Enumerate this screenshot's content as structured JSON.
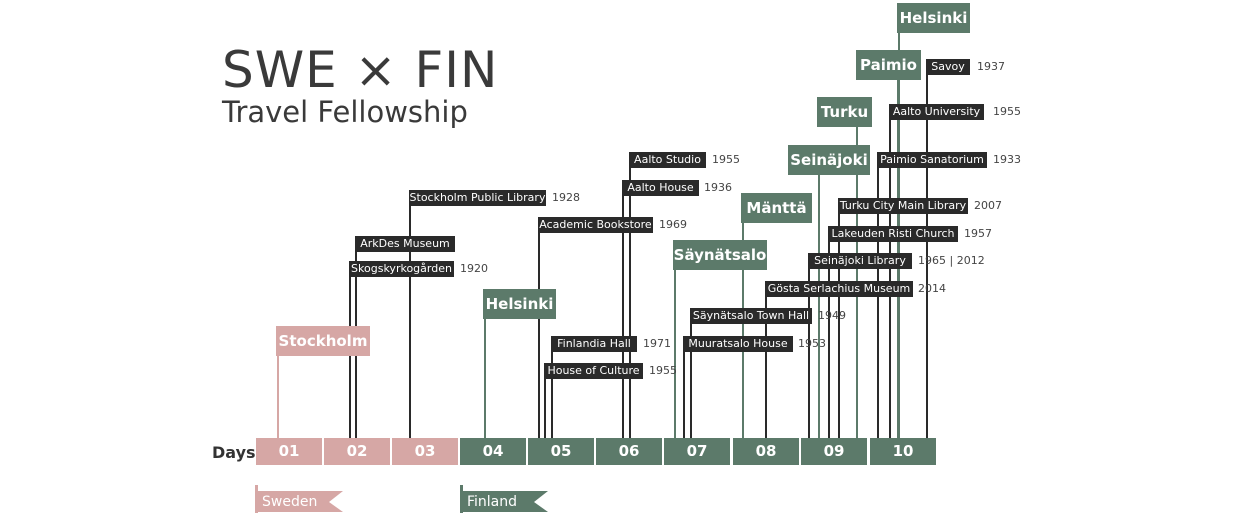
{
  "title": {
    "main": "SWE × FIN",
    "sub": "Travel Fellowship"
  },
  "colors": {
    "sweden": "#d6a7a5",
    "finland": "#5c7a6a",
    "label_bg": "#2a2a2a",
    "text": "#3a3a3a"
  },
  "days": {
    "label": "Days",
    "items": [
      {
        "num": "01",
        "country": "sweden"
      },
      {
        "num": "02",
        "country": "sweden"
      },
      {
        "num": "03",
        "country": "sweden"
      },
      {
        "num": "04",
        "country": "finland"
      },
      {
        "num": "05",
        "country": "finland"
      },
      {
        "num": "06",
        "country": "finland"
      },
      {
        "num": "07",
        "country": "finland"
      },
      {
        "num": "08",
        "country": "finland"
      },
      {
        "num": "09",
        "country": "finland"
      },
      {
        "num": "10",
        "country": "finland"
      }
    ]
  },
  "countries": [
    {
      "name": "Sweden",
      "color": "#d6a7a5"
    },
    {
      "name": "Finland",
      "color": "#5c7a6a"
    }
  ],
  "cities": [
    {
      "name": "Stockholm",
      "day": "01"
    },
    {
      "name": "Helsinki",
      "day": "04"
    },
    {
      "name": "Säynätsalo",
      "day": "07"
    },
    {
      "name": "Mänttä",
      "day": "08"
    },
    {
      "name": "Seinäjoki",
      "day": "09"
    },
    {
      "name": "Turku",
      "day": "09"
    },
    {
      "name": "Paimio",
      "day": "10"
    },
    {
      "name": "Helsinki",
      "day": "10"
    }
  ],
  "places": [
    {
      "name": "Skogskyrkogården",
      "year": "1920"
    },
    {
      "name": "ArkDes Museum",
      "year": ""
    },
    {
      "name": "Stockholm Public Library",
      "year": "1928"
    },
    {
      "name": "House of Culture",
      "year": "1955"
    },
    {
      "name": "Finlandia Hall",
      "year": "1971"
    },
    {
      "name": "Academic Bookstore",
      "year": "1969"
    },
    {
      "name": "Aalto House",
      "year": "1936"
    },
    {
      "name": "Aalto Studio",
      "year": "1955"
    },
    {
      "name": "Muuratsalo House",
      "year": "1953"
    },
    {
      "name": "Säynätsalo Town Hall",
      "year": "1949"
    },
    {
      "name": "Gösta Serlachius Museum",
      "year": "2014"
    },
    {
      "name": "Seinäjoki Library",
      "year": "1965  |  2012"
    },
    {
      "name": "Lakeuden Risti Church",
      "year": "1957"
    },
    {
      "name": "Turku City Main Library",
      "year": "2007"
    },
    {
      "name": "Paimio Sanatorium",
      "year": "1933"
    },
    {
      "name": "Aalto University",
      "year": "1955"
    },
    {
      "name": "Savoy",
      "year": "1937"
    }
  ]
}
